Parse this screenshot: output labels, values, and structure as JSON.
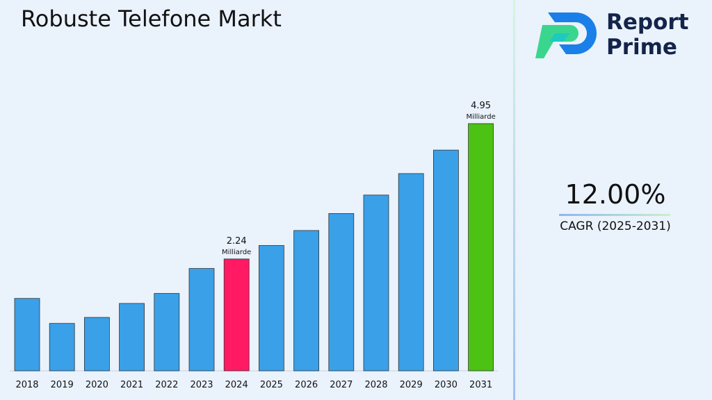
{
  "header": {
    "title": "Robuste Telefone Markt"
  },
  "logo": {
    "line1": "Report",
    "line2": "Prime"
  },
  "cagr": {
    "value": "12.00%",
    "label": "CAGR (2025-2031)"
  },
  "chart_data": {
    "type": "bar",
    "title": "Robuste Telefone Markt",
    "categories": [
      "2018",
      "2019",
      "2020",
      "2021",
      "2022",
      "2023",
      "2024",
      "2025",
      "2026",
      "2027",
      "2028",
      "2029",
      "2030",
      "2031"
    ],
    "values": [
      1.45,
      0.95,
      1.07,
      1.35,
      1.55,
      2.05,
      2.24,
      2.51,
      2.81,
      3.15,
      3.52,
      3.95,
      4.42,
      4.95
    ],
    "colors": [
      "#3aa0e8",
      "#3aa0e8",
      "#3aa0e8",
      "#3aa0e8",
      "#3aa0e8",
      "#3aa0e8",
      "#ff1a63",
      "#3aa0e8",
      "#3aa0e8",
      "#3aa0e8",
      "#3aa0e8",
      "#3aa0e8",
      "#3aa0e8",
      "#4cc212"
    ],
    "annotations": [
      {
        "index": 6,
        "value": "2.24",
        "unit": "Milliarde"
      },
      {
        "index": 13,
        "value": "4.95",
        "unit": "Milliarde"
      }
    ],
    "ylim": [
      0,
      4.95
    ],
    "grid": false,
    "xlabel": "",
    "ylabel": ""
  }
}
